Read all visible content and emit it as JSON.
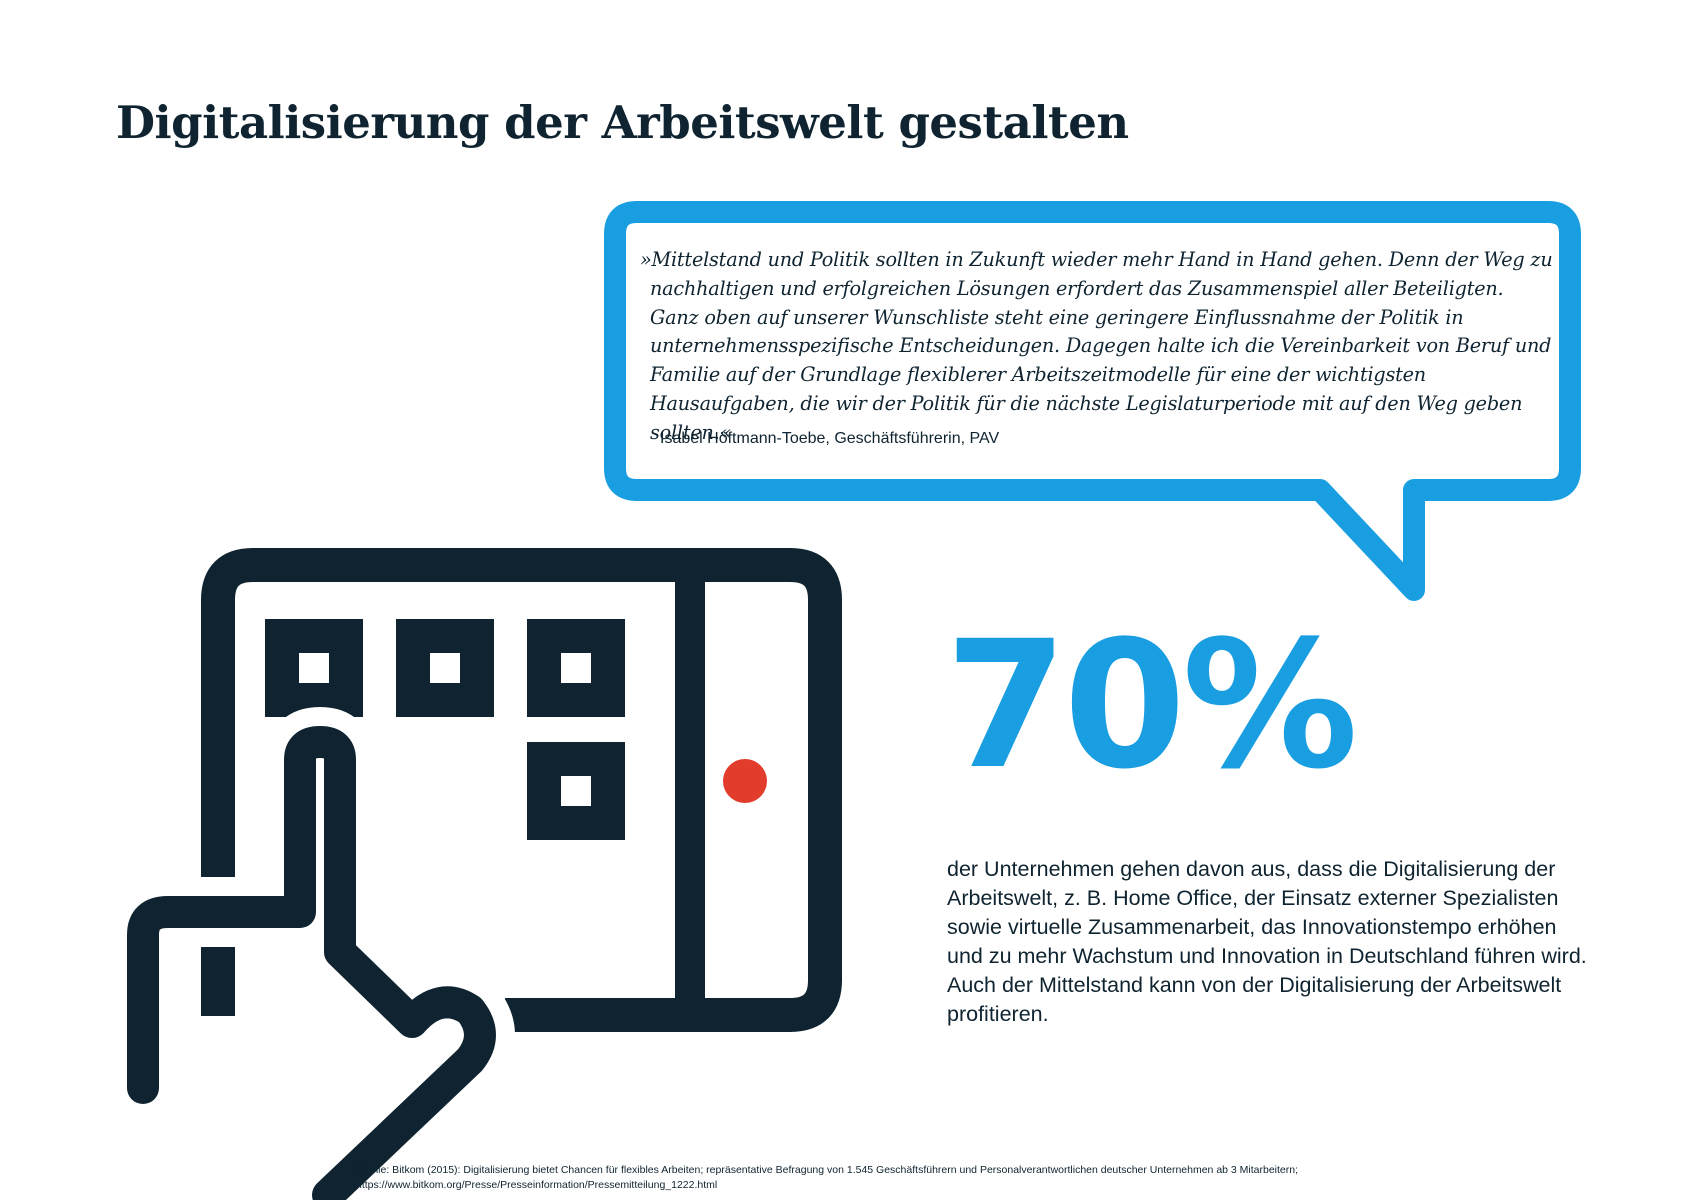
{
  "page": {
    "title": "Digitalisierung der Arbeitswelt gestalten"
  },
  "quote": {
    "text": "»Mittelstand und Politik sollten in Zukunft wieder mehr Hand in Hand gehen. Denn der Weg zu nachhaltigen und erfolgreichen Lösungen erfordert das Zusammenspiel aller Beteiligten. Ganz oben auf unserer Wunschliste steht eine geringere Einflussnahme der Politik in unternehmensspezifische Entscheidungen. Dagegen halte ich die Vereinbarkeit von Beruf und Familie auf der Grundlage flexiblerer Arbeitszeitmodelle für eine der wichtigsten Hausaufgaben, die wir der Politik für die nächste Legislaturperiode mit auf den Weg geben sollten.«",
    "author": "Isabel Höftmann-Toebe, Geschäftsführerin, PAV"
  },
  "stat": {
    "value": "70%",
    "description": "der Unternehmen gehen davon aus, dass die Digitalisierung der Arbeitswelt, z. B. Home Office, der Einsatz externer Spezialisten sowie virtuelle Zusammenarbeit, das Innovationstempo erhöhen und zu mehr Wachstum und Innovation in Deutschland führen wird. Auch der Mittelstand kann von der Digitalisierung der Arbeitswelt profitieren."
  },
  "source": {
    "line1": "Quelle: Bitkom (2015): Digitalisierung bietet Chancen für flexibles Arbeiten; repräsentative Befragung von 1.545 Geschäftsführern und Personalverantwortlichen deutscher Unternehmen ab 3 Mitarbeitern;",
    "line2": "https://www.bitkom.org/Presse/Presseinformation/Pressemitteilung_1222.html"
  },
  "icons": {
    "speech_bubble": "speech-bubble-icon",
    "tablet": "tablet-icon",
    "hand": "pointing-hand-icon",
    "indicator": "red-dot-icon"
  },
  "colors": {
    "accent_blue": "#1a9ee2",
    "navy": "#0f2430",
    "red_dot": "#e23c2c"
  }
}
